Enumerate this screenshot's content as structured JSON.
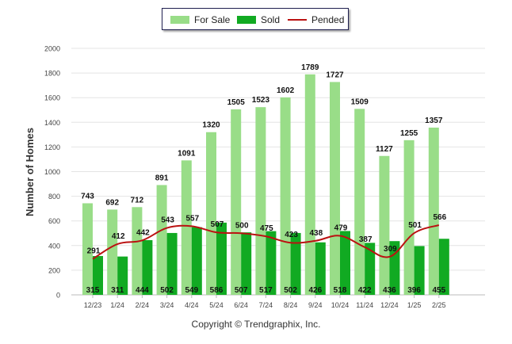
{
  "chart_data": {
    "type": "bar",
    "categories": [
      "12/23",
      "1/24",
      "2/24",
      "3/24",
      "4/24",
      "5/24",
      "6/24",
      "7/24",
      "8/24",
      "9/24",
      "10/24",
      "11/24",
      "12/24",
      "1/25",
      "2/25"
    ],
    "series": [
      {
        "name": "For Sale",
        "type": "bar",
        "color": "#99dd88",
        "values": [
          743,
          692,
          712,
          891,
          1091,
          1320,
          1505,
          1523,
          1602,
          1789,
          1727,
          1509,
          1127,
          1255,
          1357
        ]
      },
      {
        "name": "Sold",
        "type": "bar",
        "color": "#11aa22",
        "values": [
          315,
          311,
          444,
          502,
          549,
          586,
          507,
          517,
          502,
          426,
          518,
          422,
          436,
          396,
          455
        ]
      },
      {
        "name": "Pended",
        "type": "line",
        "color": "#bb1111",
        "values": [
          291,
          412,
          442,
          543,
          557,
          507,
          500,
          475,
          423,
          438,
          479,
          387,
          309,
          501,
          566
        ]
      }
    ],
    "ylabel": "Number of Homes",
    "xlabel": "",
    "ylim": [
      0,
      2000
    ],
    "yticks": [
      0,
      200,
      400,
      600,
      800,
      1000,
      1200,
      1400,
      1600,
      1800,
      2000
    ],
    "grid": true,
    "legend_position": "top-center"
  },
  "legend": {
    "for_sale": "For Sale",
    "sold": "Sold",
    "pended": "Pended"
  },
  "footer": "Copyright © Trendgraphix, Inc."
}
